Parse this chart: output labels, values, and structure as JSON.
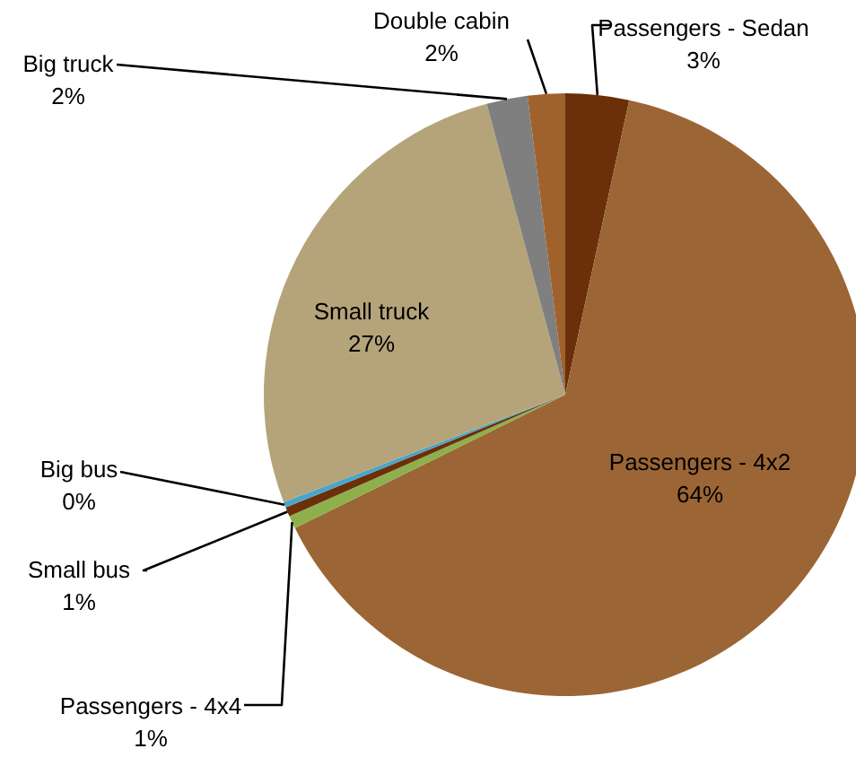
{
  "chart_data": {
    "type": "pie",
    "categories": [
      "Passengers - Sedan",
      "Passengers - 4x2",
      "Passengers - 4x4",
      "Small bus",
      "Big bus",
      "Small truck",
      "Big truck",
      "Double cabin"
    ],
    "values": [
      3.4,
      64.3,
      0.7,
      0.5,
      0.3,
      26.6,
      2.2,
      2.0
    ],
    "value_labels": [
      "3%",
      "64%",
      "1%",
      "1%",
      "0%",
      "27%",
      "2%",
      "2%"
    ],
    "colors": [
      "#6b2f0a",
      "#9c6535",
      "#8db04c",
      "#6b2f0a",
      "#4aa5c8",
      "#b5a47a",
      "#7f7f7f",
      "#a0622d"
    ]
  }
}
